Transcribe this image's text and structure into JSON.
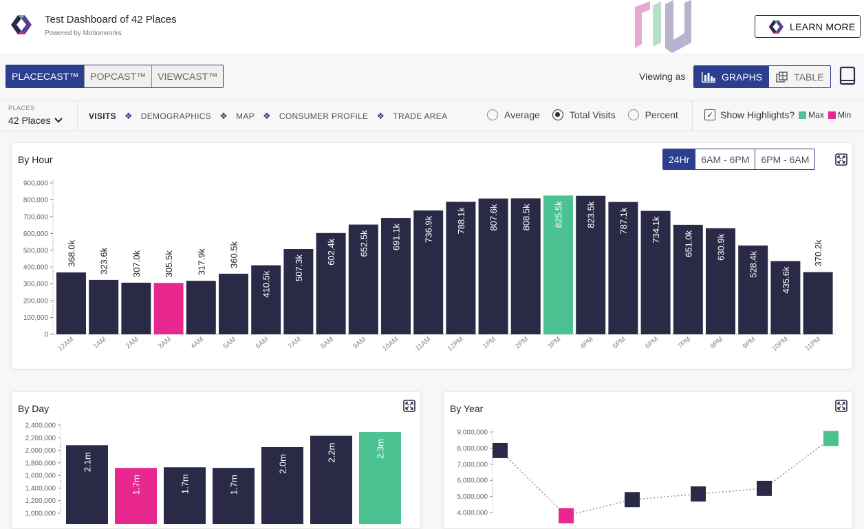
{
  "header": {
    "title": "Test Dashboard of 42 Places",
    "subtitle": "Powered by Motionworks",
    "learn_more": "LEARN MORE"
  },
  "product_tabs": [
    "PLACECAST™",
    "POPCAST™",
    "VIEWCAST™"
  ],
  "product_tab_active": 0,
  "viewing": {
    "label": "Viewing as",
    "graphs": "GRAPHS",
    "table": "TABLE"
  },
  "filters": {
    "places_label": "PLACES",
    "places_value": "42 Places",
    "nav": [
      "VISITS",
      "DEMOGRAPHICS",
      "MAP",
      "CONSUMER PROFILE",
      "TRADE AREA"
    ],
    "nav_active": 0,
    "metrics": [
      "Average",
      "Total Visits",
      "Percent"
    ],
    "metric_selected": 1,
    "highlights_label": "Show Highlights?",
    "highlights_checked": true,
    "legend_max": "Max",
    "legend_min": "Min"
  },
  "colors": {
    "bar": "#2b2a46",
    "max": "#4cc292",
    "min": "#e8288f",
    "brand": "#2b3e8f"
  },
  "by_hour": {
    "title": "By Hour",
    "ranges": [
      "24Hr",
      "6AM - 6PM",
      "6PM - 6AM"
    ],
    "range_active": 0
  },
  "by_day": {
    "title": "By Day"
  },
  "by_year": {
    "title": "By Year"
  },
  "chart_data": [
    {
      "type": "bar",
      "title": "By Hour",
      "categories": [
        "12AM",
        "1AM",
        "2AM",
        "3AM",
        "4AM",
        "5AM",
        "6AM",
        "7AM",
        "8AM",
        "9AM",
        "10AM",
        "11AM",
        "12PM",
        "1PM",
        "2PM",
        "3PM",
        "4PM",
        "5PM",
        "6PM",
        "7PM",
        "8PM",
        "9PM",
        "10PM",
        "11PM"
      ],
      "values": [
        368000,
        323600,
        307000,
        305500,
        317900,
        360500,
        410500,
        507300,
        602400,
        652500,
        691100,
        736900,
        788100,
        807600,
        808500,
        825500,
        823500,
        787100,
        734100,
        651000,
        630900,
        528400,
        435600,
        370200
      ],
      "labels": [
        "368.0k",
        "323.6k",
        "307.0k",
        "305.5k",
        "317.9k",
        "360.5k",
        "410.5k",
        "507.3k",
        "602.4k",
        "652.5k",
        "691.1k",
        "736.9k",
        "788.1k",
        "807.6k",
        "808.5k",
        "825.5k",
        "823.5k",
        "787.1k",
        "734.1k",
        "651.0k",
        "630.9k",
        "528.4k",
        "435.6k",
        "370.2k"
      ],
      "max_index": 15,
      "min_index": 3,
      "ylim": [
        0,
        900000
      ],
      "yticks": [
        "0",
        "100,000",
        "200,000",
        "300,000",
        "400,000",
        "500,000",
        "600,000",
        "700,000",
        "800,000",
        "900,000"
      ],
      "grid": false
    },
    {
      "type": "bar",
      "title": "By Day",
      "values": [
        2080000,
        1720000,
        1730000,
        1720000,
        2050000,
        2230000,
        2290000
      ],
      "labels": [
        "2.1m",
        "1.7m",
        "1.7m",
        "1.7m",
        "2.0m",
        "2.2m",
        "2.3m"
      ],
      "max_index": 6,
      "min_index": 1,
      "ylim": [
        1000000,
        2400000
      ],
      "yticks": [
        "1,000,000",
        "1,200,000",
        "1,400,000",
        "1,600,000",
        "1,800,000",
        "2,000,000",
        "2,200,000",
        "2,400,000"
      ],
      "grid": false
    },
    {
      "type": "line",
      "title": "By Year",
      "values": [
        7850000,
        3800000,
        4800000,
        5150000,
        5500000,
        8600000
      ],
      "max_index": 5,
      "min_index": 1,
      "ylim": [
        4000000,
        9000000
      ],
      "yticks": [
        "4,000,000",
        "5,000,000",
        "6,000,000",
        "7,000,000",
        "8,000,000",
        "9,000,000"
      ],
      "grid": false
    }
  ]
}
